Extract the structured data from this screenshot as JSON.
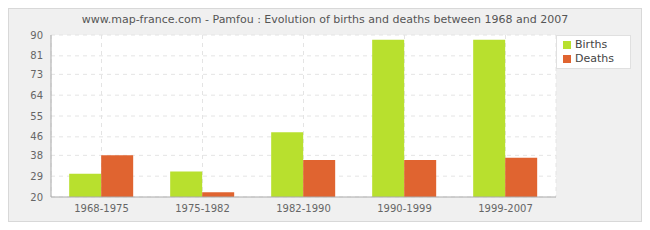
{
  "chart_data": {
    "type": "bar",
    "title": "www.map-france.com - Pamfou : Evolution of births and deaths between 1968 and 2007",
    "categories": [
      "1968-1975",
      "1975-1982",
      "1982-1990",
      "1990-1999",
      "1999-2007"
    ],
    "series": [
      {
        "name": "Births",
        "color": "#b8e02e",
        "values": [
          30,
          31,
          48,
          88,
          88
        ]
      },
      {
        "name": "Deaths",
        "color": "#e06430",
        "values": [
          38,
          22,
          36,
          36,
          37
        ]
      }
    ],
    "ylim": [
      20,
      90
    ],
    "yticks": [
      20,
      29,
      38,
      46,
      55,
      64,
      73,
      81,
      90
    ],
    "grid": true,
    "legend": "top-right"
  }
}
